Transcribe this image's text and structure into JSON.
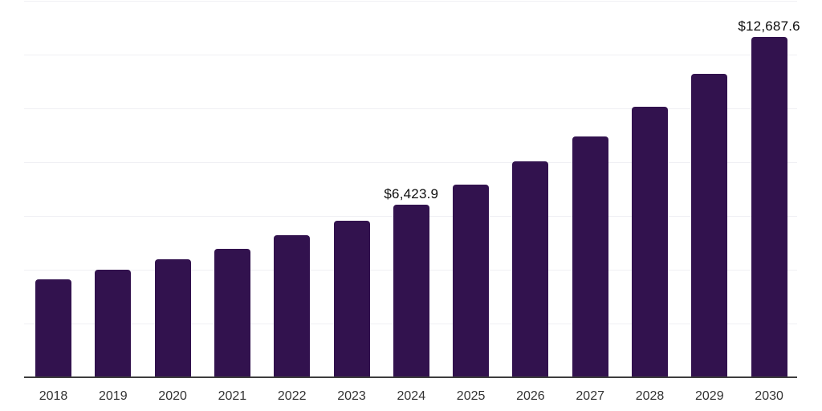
{
  "chart_data": {
    "type": "bar",
    "title": "",
    "xlabel": "",
    "ylabel": "",
    "categories": [
      "2018",
      "2019",
      "2020",
      "2021",
      "2022",
      "2023",
      "2024",
      "2025",
      "2026",
      "2027",
      "2028",
      "2029",
      "2030"
    ],
    "values": [
      3650,
      3995,
      4400,
      4790,
      5295,
      5820,
      6423.9,
      7175,
      8040,
      8965,
      10070,
      11290,
      12687.6
    ],
    "value_labels": {
      "2024": "$6,423.9",
      "2030": "$12,687.6"
    },
    "ylim": [
      0,
      14000
    ],
    "grid_step": 2000,
    "grid": "horizontal",
    "legend": "none",
    "colors": {
      "bar": "#32124e",
      "gridline": "#f0f0f4",
      "axis_line": "#3d3d3d",
      "tick_label": "#333333",
      "value_label": "#0d0d0d",
      "background": "#ffffff"
    }
  }
}
